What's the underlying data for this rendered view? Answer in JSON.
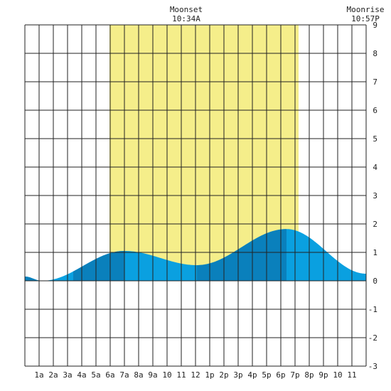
{
  "annotations": [
    {
      "title": "Moonset",
      "time": "10:34A",
      "hour": 11.0
    },
    {
      "title": "Moonrise",
      "time": "10:57P",
      "hour": 23.5
    }
  ],
  "chart_data": {
    "type": "area",
    "title": "",
    "xlabel": "",
    "ylabel": "",
    "xlim": [
      0,
      24
    ],
    "ylim": [
      -3,
      9
    ],
    "grid": true,
    "x_tick_labels": [
      "1a",
      "2a",
      "3a",
      "4a",
      "5a",
      "6a",
      "7a",
      "8a",
      "9a",
      "10",
      "11",
      "12",
      "1p",
      "2p",
      "3p",
      "4p",
      "5p",
      "6p",
      "7p",
      "8p",
      "9p",
      "10",
      "11"
    ],
    "x_tick_positions": [
      1,
      2,
      3,
      4,
      5,
      6,
      7,
      8,
      9,
      10,
      11,
      12,
      13,
      14,
      15,
      16,
      17,
      18,
      19,
      20,
      21,
      22,
      23
    ],
    "y_tick_labels": [
      "-3",
      "-2",
      "-1",
      "0",
      "1",
      "2",
      "3",
      "4",
      "5",
      "6",
      "7",
      "8",
      "9"
    ],
    "y_tick_positions": [
      -3,
      -2,
      -1,
      0,
      1,
      2,
      3,
      4,
      5,
      6,
      7,
      8,
      9
    ],
    "daylight": {
      "start": 5.95,
      "end": 19.25
    },
    "tide_extremes": [
      {
        "x": 0.0,
        "y": 0.15
      },
      {
        "x": 1.2,
        "y": 0.0
      },
      {
        "x": 7.0,
        "y": 1.05
      },
      {
        "x": 12.1,
        "y": 0.55
      },
      {
        "x": 18.4,
        "y": 1.82
      },
      {
        "x": 24.0,
        "y": 0.25
      }
    ],
    "dark_bands": [
      [
        0,
        1.2
      ],
      [
        3.4,
        7.0
      ],
      [
        12.1,
        18.4
      ]
    ],
    "colors": {
      "daylight": "#f5ee8a",
      "tide_light": "#0aa0e0",
      "tide_dark": "#0a80bc",
      "grid": "#222222"
    }
  }
}
